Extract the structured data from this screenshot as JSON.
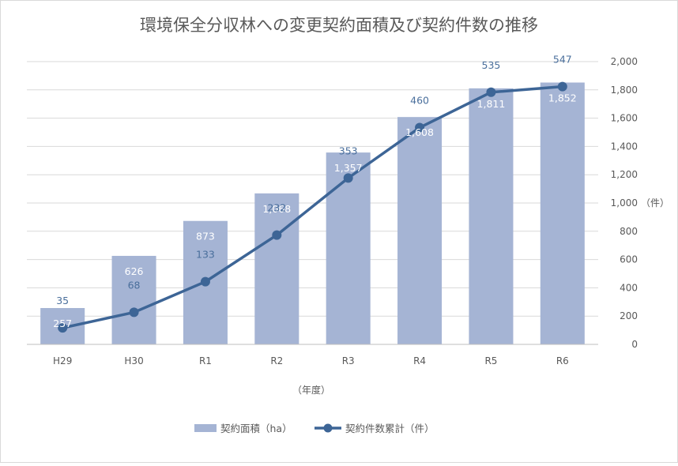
{
  "chart_data": {
    "type": "bar",
    "title": "環境保全分収林への変更契約面積及び契約件数の推移",
    "xlabel": "（年度）",
    "ylabel_right": "（件）",
    "categories": [
      "H29",
      "H30",
      "R1",
      "R2",
      "R3",
      "R4",
      "R5",
      "R6"
    ],
    "ylim": [
      0,
      2000
    ],
    "yticks": [
      "0",
      "200",
      "400",
      "600",
      "800",
      "1,000",
      "1,200",
      "1,400",
      "1,600",
      "1,800",
      "2,000"
    ],
    "series": [
      {
        "name": "契約面積（ha）",
        "kind": "bar",
        "values": [
          257,
          626,
          873,
          1068,
          1357,
          1608,
          1811,
          1852
        ],
        "labels": [
          "257",
          "626",
          "873",
          "1,068",
          "1,357",
          "1,608",
          "1,811",
          "1,852"
        ],
        "color": "#a5b4d4"
      },
      {
        "name": "契約件数累計（件）",
        "kind": "line",
        "values": [
          35,
          68,
          133,
          232,
          353,
          460,
          535,
          547
        ],
        "labels": [
          "35",
          "68",
          "133",
          "232",
          "353",
          "460",
          "535",
          "547"
        ],
        "color": "#3d6596"
      }
    ],
    "grid": true,
    "legend_position": "bottom"
  }
}
